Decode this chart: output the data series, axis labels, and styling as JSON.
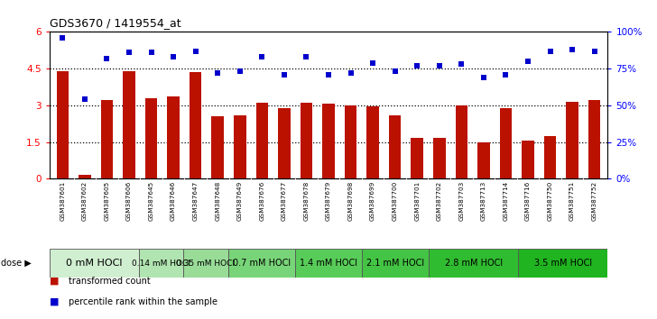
{
  "title": "GDS3670 / 1419554_at",
  "samples": [
    "GSM387601",
    "GSM387602",
    "GSM387605",
    "GSM387606",
    "GSM387645",
    "GSM387646",
    "GSM387647",
    "GSM387648",
    "GSM387649",
    "GSM387676",
    "GSM387677",
    "GSM387678",
    "GSM387679",
    "GSM387698",
    "GSM387699",
    "GSM387700",
    "GSM387701",
    "GSM387702",
    "GSM387703",
    "GSM387713",
    "GSM387714",
    "GSM387716",
    "GSM387750",
    "GSM387751",
    "GSM387752"
  ],
  "bar_values": [
    4.4,
    0.15,
    3.2,
    4.4,
    3.3,
    3.35,
    4.35,
    2.55,
    2.6,
    3.1,
    2.9,
    3.1,
    3.08,
    3.0,
    2.95,
    2.6,
    1.65,
    1.65,
    3.0,
    1.5,
    2.9,
    1.55,
    1.75,
    3.15,
    3.2
  ],
  "scatter_values": [
    96,
    54,
    82,
    86,
    86,
    83,
    87,
    72,
    73,
    83,
    71,
    83,
    71,
    72,
    79,
    73,
    77,
    77,
    78,
    69,
    71,
    80,
    87,
    88,
    87
  ],
  "doses": [
    {
      "label": "0 mM HOCl",
      "start": 0,
      "end": 4,
      "color": "#d0eed0"
    },
    {
      "label": "0.14 mM HOCl",
      "start": 4,
      "end": 6,
      "color": "#b0e4b0"
    },
    {
      "label": "0.35 mM HOCl",
      "start": 6,
      "end": 8,
      "color": "#98dc98"
    },
    {
      "label": "0.7 mM HOCl",
      "start": 8,
      "end": 11,
      "color": "#78d478"
    },
    {
      "label": "1.4 mM HOCl",
      "start": 11,
      "end": 14,
      "color": "#58cc58"
    },
    {
      "label": "2.1 mM HOCl",
      "start": 14,
      "end": 17,
      "color": "#44c444"
    },
    {
      "label": "2.8 mM HOCl",
      "start": 17,
      "end": 21,
      "color": "#30bc30"
    },
    {
      "label": "3.5 mM HOCl",
      "start": 21,
      "end": 25,
      "color": "#20b420"
    }
  ],
  "bar_color": "#bb1100",
  "scatter_color": "#0000cc",
  "ylim_left": [
    0,
    6
  ],
  "ylim_right": [
    0,
    100
  ],
  "yticks_left": [
    0,
    1.5,
    3.0,
    4.5,
    6.0
  ],
  "yticks_right": [
    0,
    25,
    50,
    75,
    100
  ],
  "ytick_labels_left": [
    "0",
    "1.5",
    "3",
    "4.5",
    "6"
  ],
  "ytick_labels_right": [
    "0%",
    "25%",
    "50%",
    "75%",
    "100%"
  ],
  "hlines": [
    1.5,
    3.0,
    4.5
  ],
  "gray_sample_bg": "#c8c8c8",
  "plot_bg": "#ffffff",
  "dose_font_sizes": [
    8,
    6.5,
    6.5,
    7,
    7,
    7,
    7,
    7
  ]
}
